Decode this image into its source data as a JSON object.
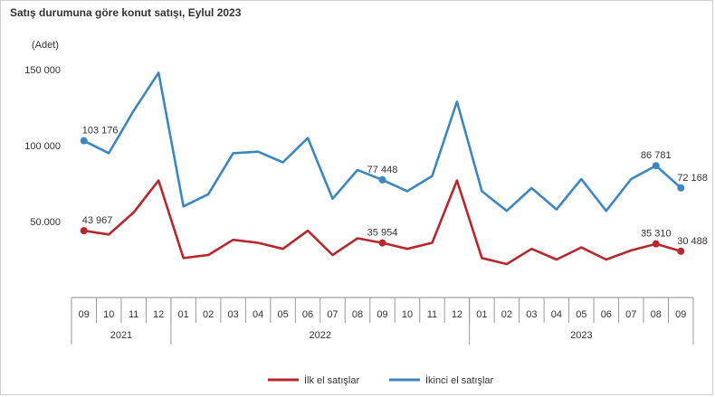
{
  "chart_data": {
    "type": "line",
    "title": "Satış durumuna göre konut satışı, Eylul 2023",
    "ylabel": "(Adet)",
    "ylim": [
      0,
      150000
    ],
    "yticks": [
      {
        "value": 50000,
        "label": "50.000"
      },
      {
        "value": 100000,
        "label": "100 000"
      },
      {
        "value": 150000,
        "label": "150 000"
      }
    ],
    "categories": [
      "09",
      "10",
      "11",
      "12",
      "01",
      "02",
      "03",
      "04",
      "05",
      "06",
      "07",
      "08",
      "09",
      "10",
      "11",
      "12",
      "01",
      "02",
      "03",
      "04",
      "05",
      "06",
      "07",
      "08",
      "09"
    ],
    "year_groups": [
      {
        "label": "2021",
        "start": 0,
        "end": 3
      },
      {
        "label": "2022",
        "start": 4,
        "end": 15
      },
      {
        "label": "2023",
        "start": 16,
        "end": 24
      }
    ],
    "series": [
      {
        "name": "İlk el satışlar",
        "color": "#b5282d",
        "values": [
          43967,
          41500,
          56000,
          77000,
          26000,
          28000,
          38000,
          36000,
          32000,
          44000,
          28000,
          39000,
          35954,
          32000,
          36000,
          77000,
          26000,
          22000,
          32000,
          25000,
          33000,
          25000,
          31000,
          35310,
          30488
        ],
        "labels": [
          {
            "index": 0,
            "text": "43 967"
          },
          {
            "index": 12,
            "text": "35 954"
          },
          {
            "index": 23,
            "text": "35 310"
          },
          {
            "index": 24,
            "text": "30 488"
          }
        ]
      },
      {
        "name": "İkinci el satışlar",
        "color": "#3d87c0",
        "values": [
          103176,
          95000,
          123000,
          148000,
          60000,
          68000,
          95000,
          96000,
          89000,
          105000,
          65000,
          84000,
          77448,
          70000,
          80000,
          129000,
          70000,
          57000,
          72000,
          58000,
          78000,
          57000,
          78000,
          86781,
          72168
        ],
        "labels": [
          {
            "index": 0,
            "text": "103 176"
          },
          {
            "index": 12,
            "text": "77 448"
          },
          {
            "index": 23,
            "text": "86 781"
          },
          {
            "index": 24,
            "text": "72 168"
          }
        ]
      }
    ],
    "legend_position": "bottom"
  }
}
